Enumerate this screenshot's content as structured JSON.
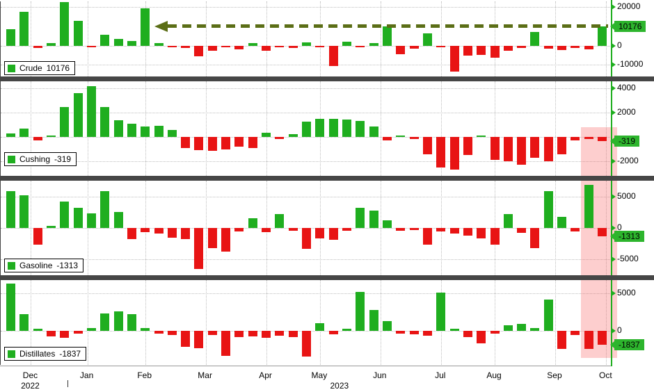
{
  "chart_data": {
    "type": "bar",
    "x_axis": {
      "months": [
        {
          "label": "Dec",
          "week": 1.5
        },
        {
          "label": "Jan",
          "week": 5.7
        },
        {
          "label": "Feb",
          "week": 10
        },
        {
          "label": "Mar",
          "week": 14.5
        },
        {
          "label": "Apr",
          "week": 19
        },
        {
          "label": "May",
          "week": 23
        },
        {
          "label": "Jun",
          "week": 27.5
        },
        {
          "label": "Jul",
          "week": 32
        },
        {
          "label": "Aug",
          "week": 36
        },
        {
          "label": "Sep",
          "week": 40.5
        },
        {
          "label": "Oct",
          "week": 44.3
        }
      ],
      "years": [
        {
          "label": "2022",
          "week": 1.5
        },
        {
          "label": "2023",
          "week": 24.5
        }
      ]
    },
    "colors": {
      "positive": "#1fae1f",
      "negative": "#e81414",
      "axis": "#1fae1f",
      "dashed_annotation": "#5b6e16",
      "highlight_band": "rgba(248,105,105,0.33)",
      "separator": "#464646",
      "value_label_bg": "#2db52d"
    },
    "panels": [
      {
        "name": "Crude",
        "legend": {
          "name": "Crude",
          "value": "10176"
        },
        "ymin": -16000,
        "ymax": 23000,
        "ticks": [
          {
            "value": 20000,
            "label": "20000"
          },
          {
            "value": 10176,
            "label": "10176",
            "highlight": true
          },
          {
            "value": 0,
            "label": "0"
          },
          {
            "value": -10000,
            "label": "-10000"
          }
        ],
        "values": [
          8500,
          17500,
          -1200,
          1500,
          22500,
          13000,
          -800,
          5500,
          3500,
          2500,
          19500,
          1500,
          -900,
          -1200,
          -5500,
          -2500,
          -800,
          -1900,
          1300,
          -2800,
          -700,
          -1300,
          1600,
          -900,
          -10500,
          2100,
          -700,
          1300,
          10000,
          -4500,
          -1600,
          6500,
          -900,
          -13500,
          -5000,
          -4800,
          -6200,
          -2600,
          -1100,
          7000,
          -1600,
          -2100,
          -1300,
          -1900,
          10176
        ]
      },
      {
        "name": "Cushing",
        "legend": {
          "name": "Cushing",
          "value": "-319"
        },
        "ymin": -3200,
        "ymax": 4600,
        "ticks": [
          {
            "value": 4000,
            "label": "4000"
          },
          {
            "value": 2000,
            "label": "2000"
          },
          {
            "value": 0,
            "label": ""
          },
          {
            "value": -319,
            "label": "-319",
            "highlight": true
          },
          {
            "value": -2000,
            "label": "-2000"
          }
        ],
        "values": [
          300,
          700,
          -250,
          150,
          2500,
          3600,
          4200,
          2500,
          1400,
          1100,
          900,
          950,
          600,
          -900,
          -1100,
          -1150,
          -1000,
          -800,
          -900,
          350,
          -150,
          250,
          1300,
          1500,
          1500,
          1450,
          1350,
          900,
          -250,
          100,
          -150,
          -1400,
          -2500,
          -2700,
          -1500,
          150,
          -1900,
          -2000,
          -2300,
          -1700,
          -2000,
          -1400,
          -250,
          -150,
          -319
        ]
      },
      {
        "name": "Gasoline",
        "legend": {
          "name": "Gasoline",
          "value": "-1313"
        },
        "ymin": -7500,
        "ymax": 7500,
        "ticks": [
          {
            "value": 5000,
            "label": "5000"
          },
          {
            "value": 0,
            "label": "0"
          },
          {
            "value": -1313,
            "label": "-1313",
            "highlight": true
          },
          {
            "value": -5000,
            "label": "-5000"
          }
        ],
        "values": [
          5800,
          5200,
          -2600,
          300,
          4200,
          3200,
          2300,
          5800,
          2500,
          -1800,
          -700,
          -900,
          -1500,
          -1800,
          -6500,
          -3200,
          -3800,
          -500,
          1500,
          -700,
          2200,
          -400,
          -3300,
          -1700,
          -1900,
          -400,
          3200,
          2800,
          1200,
          -400,
          -300,
          -2700,
          -500,
          -900,
          -1200,
          -1600,
          -2600,
          2200,
          -800,
          -3200,
          5800,
          1800,
          -600,
          6800,
          -1313
        ]
      },
      {
        "name": "Distillates",
        "legend": {
          "name": "Distillates",
          "value": "-1837"
        },
        "ymin": -4500,
        "ymax": 6800,
        "ticks": [
          {
            "value": 5000,
            "label": "5000"
          },
          {
            "value": 0,
            "label": "0"
          },
          {
            "value": -1837,
            "label": "-1837",
            "highlight": true
          }
        ],
        "values": [
          6300,
          2300,
          300,
          -700,
          -900,
          -300,
          400,
          2400,
          2600,
          2300,
          400,
          -300,
          -500,
          -2100,
          -2300,
          -500,
          -3300,
          -800,
          -700,
          -900,
          -600,
          -800,
          -3400,
          1100,
          -400,
          300,
          5200,
          2800,
          1300,
          -300,
          -400,
          -600,
          5100,
          300,
          -800,
          -1600,
          -300,
          800,
          1000,
          400,
          4200,
          -2400,
          -500,
          -2400,
          -1837
        ]
      }
    ],
    "annotations": {
      "dashed_line": {
        "panel": 0,
        "value": 10176,
        "from_week": 11
      },
      "highlight_band": {
        "from_week": 42.8,
        "to_week": 44.85
      }
    }
  }
}
